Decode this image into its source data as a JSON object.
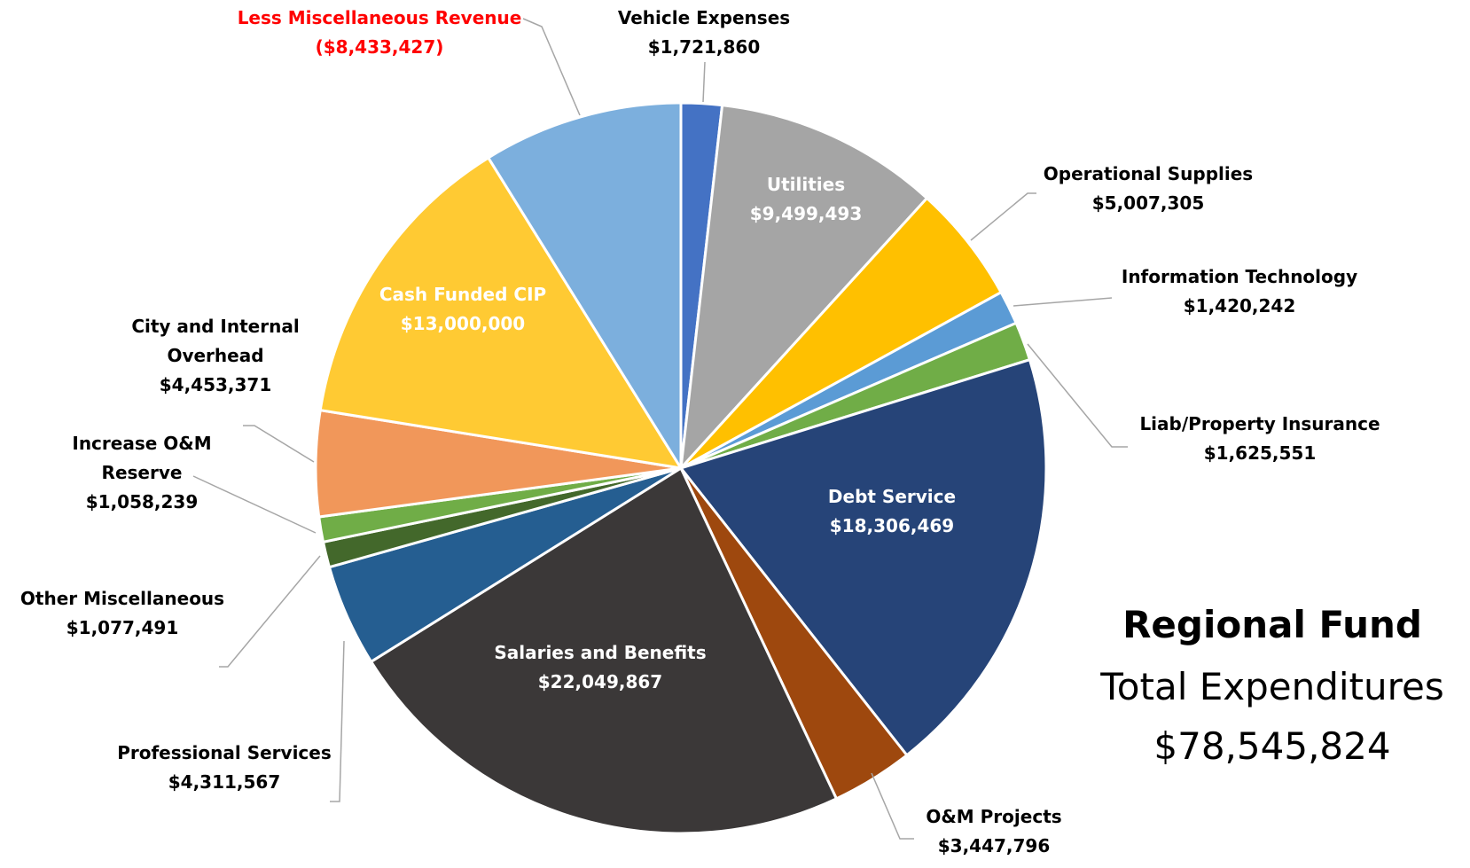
{
  "chart_data": {
    "type": "pie",
    "categories": [
      "Vehicle Expenses",
      "Utilities",
      "Operational Supplies",
      "Information Technology",
      "Liab/Property Insurance",
      "Debt Service",
      "O&M Projects",
      "Salaries and Benefits",
      "Professional Services",
      "Other Miscellaneous",
      "Increase O&M Reserve",
      "City and Internal Overhead",
      "Cash Funded CIP",
      "Less Miscellaneous Revenue"
    ],
    "values": [
      1721860,
      9499493,
      5007305,
      1420242,
      1625551,
      18306469,
      3447796,
      22049867,
      4311567,
      1077491,
      1058239,
      4453371,
      13000000,
      -8433427
    ],
    "value_labels": [
      "$1,721,860",
      "$9,499,493",
      "$5,007,305",
      "$1,420,242",
      "$1,625,551",
      "$18,306,469",
      "$3,447,796",
      "$22,049,867",
      "$4,311,567",
      "$1,077,491",
      "$1,058,239",
      "$4,453,371",
      "$13,000,000",
      "($8,433,427)"
    ],
    "colors": [
      "#4472c4",
      "#a5a5a5",
      "#ffc000",
      "#5b9bd5",
      "#70ad47",
      "#264478",
      "#9e480e",
      "#3b3838",
      "#255e91",
      "#43682b",
      "#70ad47",
      "#f1975a",
      "#ffca33",
      "#7cafdd"
    ],
    "label_colors": [
      "#000000",
      "#ffffff",
      "#000000",
      "#000000",
      "#000000",
      "#ffffff",
      "#000000",
      "#ffffff",
      "#000000",
      "#000000",
      "#000000",
      "#000000",
      "#ffffff",
      "#ff0000"
    ],
    "annotations": [
      "Regional Fund",
      "Total Expenditures",
      "$78,545,824"
    ]
  }
}
